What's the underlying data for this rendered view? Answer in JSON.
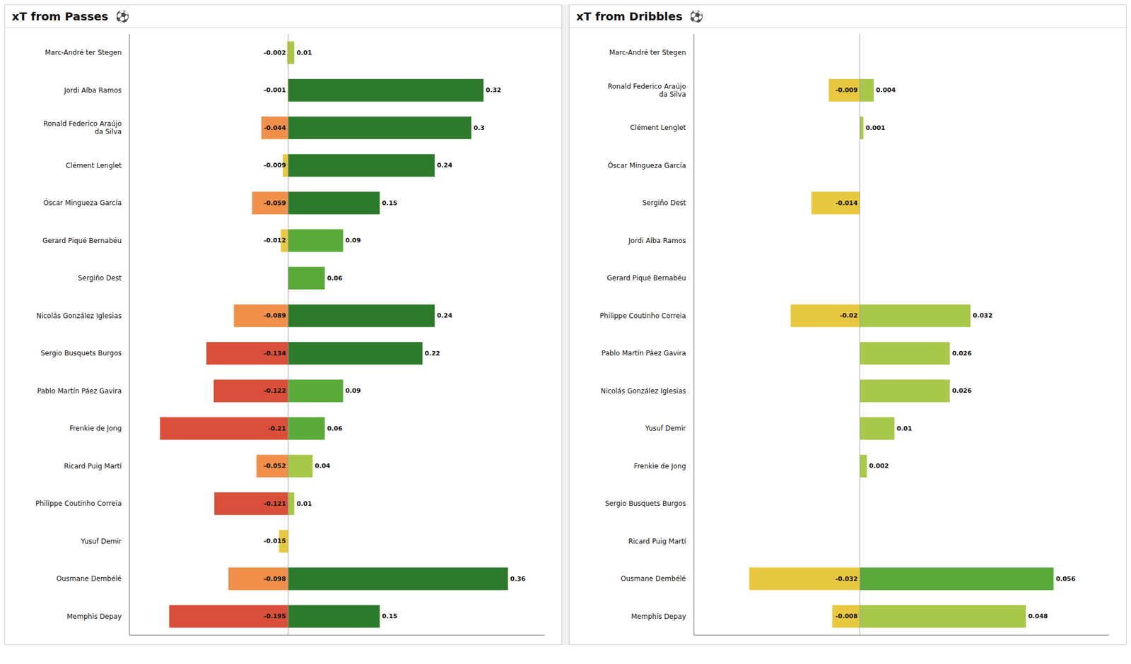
{
  "chart_data": [
    {
      "type": "bar",
      "title": "xT from Passes",
      "annotation": "⚽",
      "orientation": "horizontal",
      "stacked": true,
      "data_labels": true,
      "tick_labels": "y",
      "grid": false,
      "xlim": [
        -0.26,
        0.42
      ],
      "categories": [
        "Marc-André ter Stegen",
        "Jordi Alba Ramos",
        "Ronald Federico Araújo\nda Silva",
        "Clément Lenglet",
        "Óscar Mingueza García",
        "Gerard Piqué Bernabéu",
        "Sergiño Dest",
        "Nicolás González Iglesias",
        "Sergio Busquets Burgos",
        "Pablo Martín Páez Gavira",
        "Frenkie de Jong",
        "Ricard Puig Martí",
        "Philippe Coutinho Correia",
        "Yusuf Demir",
        "Ousmane Dembélé",
        "Memphis Depay"
      ],
      "series": [
        {
          "values": [
            -0.002,
            -0.001,
            -0.044,
            -0.009,
            -0.059,
            -0.012,
            0,
            -0.089,
            -0.134,
            -0.122,
            -0.21,
            -0.052,
            -0.121,
            -0.015,
            -0.098,
            -0.195
          ],
          "colors": [
            "#e8c840",
            "#e8c840",
            "#f0904a",
            "#e8c840",
            "#f0904a",
            "#e8c840",
            "#e8c840",
            "#f0904a",
            "#d94f3a",
            "#d94f3a",
            "#d94f3a",
            "#f0904a",
            "#d94f3a",
            "#e8c840",
            "#f0904a",
            "#d94f3a"
          ]
        },
        {
          "values": [
            0.01,
            0.32,
            0.3,
            0.24,
            0.15,
            0.09,
            0.06,
            0.24,
            0.22,
            0.09,
            0.06,
            0.04,
            0.01,
            0,
            0.36,
            0.15
          ],
          "colors": [
            "#a8c84a",
            "#2d7a2d",
            "#2d7a2d",
            "#2d7a2d",
            "#2d7a2d",
            "#5aaa3a",
            "#5aaa3a",
            "#2d7a2d",
            "#2d7a2d",
            "#5aaa3a",
            "#5aaa3a",
            "#a8c84a",
            "#a8c84a",
            "#a8c84a",
            "#2d7a2d",
            "#2d7a2d"
          ]
        }
      ]
    },
    {
      "type": "bar",
      "title": "xT from Dribbles",
      "annotation": "⚽",
      "orientation": "horizontal",
      "stacked": true,
      "data_labels": true,
      "tick_labels": "y",
      "grid": false,
      "xlim": [
        -0.048,
        0.072
      ],
      "categories": [
        "Marc-André ter Stegen",
        "Ronald Federico Araújo\nda Silva",
        "Clément Lenglet",
        "Óscar Mingueza García",
        "Sergiño Dest",
        "Jordi Alba Ramos",
        "Gerard Piqué Bernabéu",
        "Philippe Coutinho Correia",
        "Pablo Martín Páez Gavira",
        "Nicolás González Iglesias",
        "Yusuf Demir",
        "Frenkie de Jong",
        "Sergio Busquets Burgos",
        "Ricard Puig Martí",
        "Ousmane Dembélé",
        "Memphis Depay"
      ],
      "series": [
        {
          "values": [
            0,
            -0.009,
            0,
            0,
            -0.014,
            0,
            0,
            -0.02,
            0,
            0,
            0,
            0,
            0,
            0,
            -0.032,
            -0.008
          ],
          "colors": [
            "#e8c840",
            "#e8c840",
            "#e8c840",
            "#e8c840",
            "#e8c840",
            "#e8c840",
            "#e8c840",
            "#e8c840",
            "#e8c840",
            "#e8c840",
            "#e8c840",
            "#e8c840",
            "#e8c840",
            "#e8c840",
            "#e8c840",
            "#e8c840"
          ]
        },
        {
          "values": [
            0,
            0.004,
            0.001,
            0,
            0,
            0,
            0,
            0.032,
            0.026,
            0.026,
            0.01,
            0.002,
            0,
            0,
            0.056,
            0.048
          ],
          "colors": [
            "#a8c84a",
            "#a8c84a",
            "#a8c84a",
            "#a8c84a",
            "#a8c84a",
            "#a8c84a",
            "#a8c84a",
            "#a8c84a",
            "#a8c84a",
            "#a8c84a",
            "#a8c84a",
            "#a8c84a",
            "#a8c84a",
            "#a8c84a",
            "#5aaa3a",
            "#a8c84a"
          ]
        }
      ]
    }
  ]
}
